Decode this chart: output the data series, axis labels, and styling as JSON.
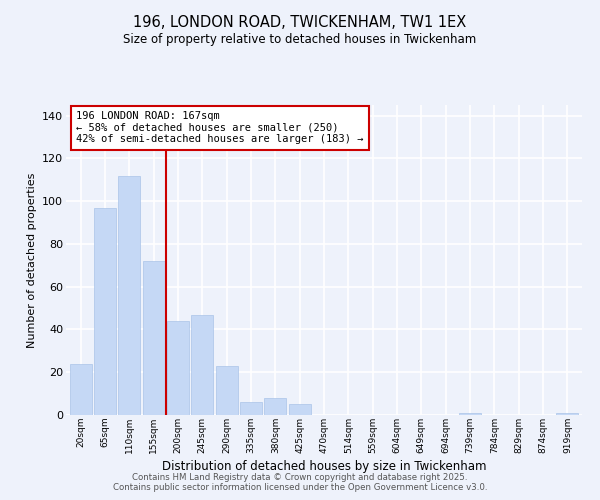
{
  "title": "196, LONDON ROAD, TWICKENHAM, TW1 1EX",
  "subtitle": "Size of property relative to detached houses in Twickenham",
  "xlabel": "Distribution of detached houses by size in Twickenham",
  "ylabel": "Number of detached properties",
  "categories": [
    "20sqm",
    "65sqm",
    "110sqm",
    "155sqm",
    "200sqm",
    "245sqm",
    "290sqm",
    "335sqm",
    "380sqm",
    "425sqm",
    "470sqm",
    "514sqm",
    "559sqm",
    "604sqm",
    "649sqm",
    "694sqm",
    "739sqm",
    "784sqm",
    "829sqm",
    "874sqm",
    "919sqm"
  ],
  "values": [
    24,
    97,
    112,
    72,
    44,
    47,
    23,
    6,
    8,
    5,
    0,
    0,
    0,
    0,
    0,
    0,
    1,
    0,
    0,
    0,
    1
  ],
  "bar_color": "#c5d8f5",
  "bar_edgecolor": "#aac4e8",
  "vline_x": 3.5,
  "vline_color": "#cc0000",
  "annotation_line1": "196 LONDON ROAD: 167sqm",
  "annotation_line2": "← 58% of detached houses are smaller (250)",
  "annotation_line3": "42% of semi-detached houses are larger (183) →",
  "annotation_box_edgecolor": "#cc0000",
  "annotation_box_facecolor": "#ffffff",
  "ylim": [
    0,
    145
  ],
  "yticks": [
    0,
    20,
    40,
    60,
    80,
    100,
    120,
    140
  ],
  "bg_color": "#eef2fb",
  "grid_color": "#ffffff",
  "footer1": "Contains HM Land Registry data © Crown copyright and database right 2025.",
  "footer2": "Contains public sector information licensed under the Open Government Licence v3.0."
}
